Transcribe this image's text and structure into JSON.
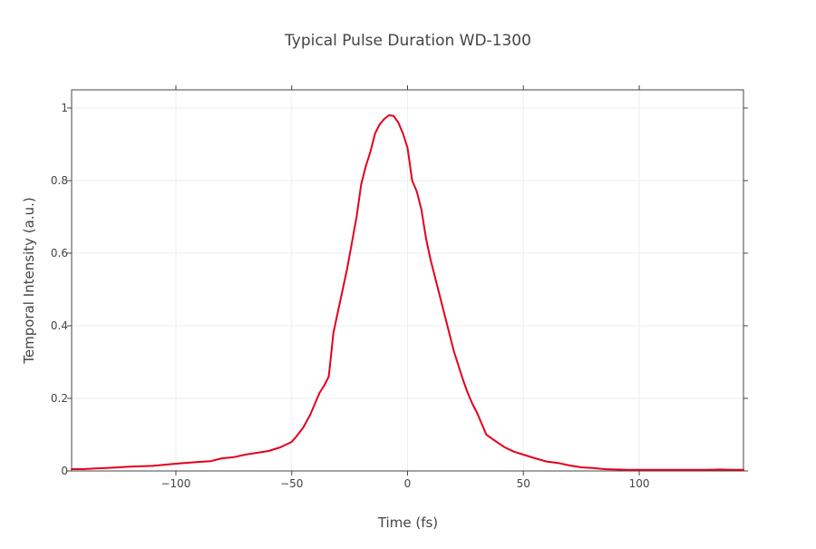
{
  "chart_data": {
    "type": "line",
    "title": "Typical Pulse Duration WD-1300",
    "xlabel": "Time (fs)",
    "ylabel": "Temporal Intensity (a.u.)",
    "xlim": [
      -145,
      145
    ],
    "ylim": [
      0,
      1.05
    ],
    "x_ticks": [
      -100,
      -50,
      0,
      50,
      100
    ],
    "x_tick_labels": [
      "−100",
      "−50",
      "0",
      "50",
      "100"
    ],
    "y_ticks": [
      0,
      0.2,
      0.4,
      0.6,
      0.8,
      1
    ],
    "y_tick_labels": [
      "0",
      "0.2",
      "0.4",
      "0.6",
      "0.8",
      "1"
    ],
    "grid": true,
    "legend": "none",
    "series": [
      {
        "color": "#e3001b",
        "x": [
          -145,
          -140,
          -135,
          -130,
          -120,
          -110,
          -100,
          -90,
          -85,
          -80,
          -75,
          -70,
          -65,
          -60,
          -55,
          -50,
          -48,
          -45,
          -42,
          -40,
          -38,
          -36,
          -34,
          -33,
          -32,
          -30,
          -28,
          -26,
          -24,
          -22,
          -20,
          -18,
          -16,
          -14,
          -12,
          -10,
          -8,
          -6,
          -4,
          -2,
          0,
          2,
          4,
          6,
          8,
          10,
          12,
          14,
          16,
          18,
          20,
          22,
          24,
          26,
          28,
          30,
          32,
          34,
          38,
          42,
          46,
          50,
          55,
          60,
          65,
          70,
          75,
          80,
          85,
          90,
          95,
          100,
          110,
          120,
          130,
          135,
          140,
          145
        ],
        "y": [
          0.005,
          0.005,
          0.007,
          0.008,
          0.012,
          0.014,
          0.02,
          0.025,
          0.027,
          0.035,
          0.038,
          0.045,
          0.05,
          0.055,
          0.065,
          0.08,
          0.095,
          0.12,
          0.155,
          0.185,
          0.215,
          0.235,
          0.26,
          0.32,
          0.38,
          0.44,
          0.5,
          0.56,
          0.63,
          0.7,
          0.79,
          0.84,
          0.88,
          0.93,
          0.955,
          0.97,
          0.98,
          0.978,
          0.96,
          0.93,
          0.89,
          0.8,
          0.77,
          0.72,
          0.64,
          0.58,
          0.53,
          0.48,
          0.43,
          0.38,
          0.33,
          0.29,
          0.25,
          0.215,
          0.185,
          0.16,
          0.13,
          0.1,
          0.082,
          0.065,
          0.053,
          0.045,
          0.035,
          0.026,
          0.022,
          0.015,
          0.01,
          0.008,
          0.005,
          0.004,
          0.003,
          0.003,
          0.003,
          0.003,
          0.003,
          0.004,
          0.003,
          0.003
        ]
      }
    ]
  }
}
